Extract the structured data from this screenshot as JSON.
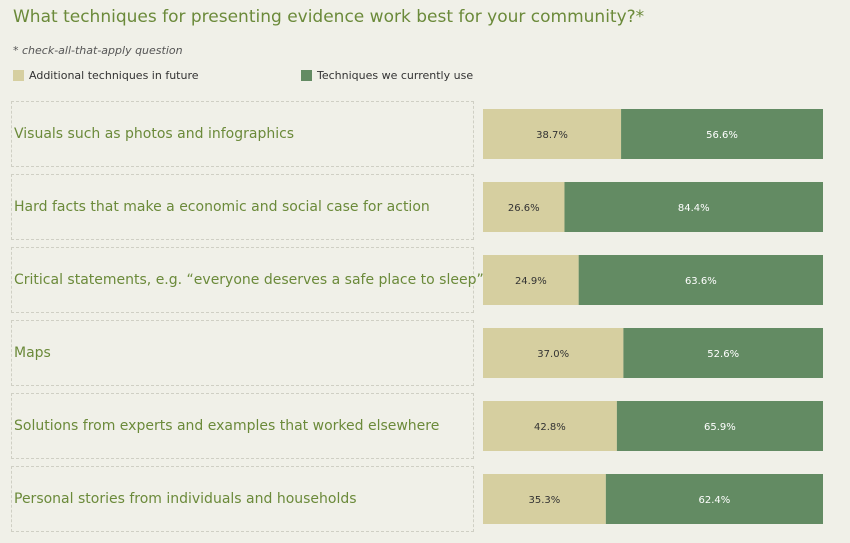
{
  "title": "What techniques for presenting evidence work best for your community?*",
  "note": "* check-all-that-apply question",
  "colors": {
    "future": "#d6cfa0",
    "current": "#638b63",
    "title": "#6b8a3a"
  },
  "chart_data": {
    "type": "bar",
    "orientation": "horizontal",
    "stacked": true,
    "legend_position": "top-left",
    "categories": [
      "Visuals such as photos and infographics",
      "Hard facts that make a economic and social case for action",
      "Critical statements, e.g. “everyone deserves a safe place to sleep”",
      "Maps",
      "Solutions from experts and examples that worked elsewhere",
      "Personal stories from individuals and households"
    ],
    "series": [
      {
        "name": "Additional techniques in future",
        "values": [
          38.7,
          26.6,
          24.9,
          37.0,
          42.8,
          35.3
        ],
        "labels": [
          "38.7%",
          "26.6%",
          "24.9%",
          "37.0%",
          "42.8%",
          "35.3%"
        ]
      },
      {
        "name": "Techniques we currently use",
        "values": [
          56.6,
          84.4,
          63.6,
          52.6,
          65.9,
          62.4
        ],
        "labels": [
          "56.6%",
          "84.4%",
          "63.6%",
          "52.6%",
          "65.9%",
          "62.4%"
        ]
      }
    ]
  }
}
